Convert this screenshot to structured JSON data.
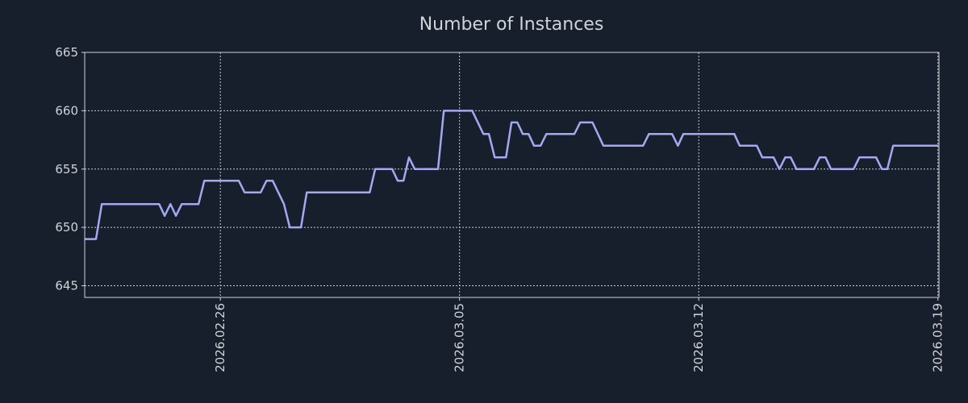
{
  "chart_data": {
    "type": "line",
    "title": "Number of Instances",
    "xlabel": "",
    "ylabel": "",
    "x_unit": "days since 2026.02.26",
    "xlim": [
      -3.97,
      21.03
    ],
    "ylim": [
      644,
      665
    ],
    "grid": true,
    "x_ticks": [
      {
        "value": 0,
        "label": "2026.02.26"
      },
      {
        "value": 7,
        "label": "2026.03.05"
      },
      {
        "value": 14,
        "label": "2026.03.12"
      },
      {
        "value": 21,
        "label": "2026.03.19"
      }
    ],
    "y_ticks": [
      {
        "value": 645,
        "label": "645"
      },
      {
        "value": 650,
        "label": "650"
      },
      {
        "value": 655,
        "label": "655"
      },
      {
        "value": 660,
        "label": "660"
      },
      {
        "value": 665,
        "label": "665"
      }
    ],
    "series": [
      {
        "name": "Number of Instances",
        "color": "#a3a8f0",
        "x": [
          -3.97,
          -3.64,
          -3.47,
          -1.79,
          -1.63,
          -1.46,
          -1.3,
          -1.13,
          -0.64,
          -0.47,
          0.54,
          0.71,
          1.18,
          1.35,
          1.53,
          1.86,
          2.03,
          2.36,
          2.53,
          4.37,
          4.53,
          5.03,
          5.19,
          5.36,
          5.52,
          5.69,
          6.37,
          6.54,
          7.37,
          7.7,
          7.86,
          8.03,
          8.36,
          8.52,
          8.69,
          8.85,
          9.02,
          9.18,
          9.37,
          9.54,
          10.36,
          10.53,
          10.89,
          11.21,
          12.37,
          12.54,
          13.22,
          13.39,
          13.55,
          15.04,
          15.2,
          15.7,
          15.86,
          16.19,
          16.36,
          16.53,
          16.69,
          16.86,
          17.37,
          17.54,
          17.71,
          17.87,
          18.53,
          18.7,
          19.19,
          19.36,
          19.52,
          19.69,
          21.01
        ],
        "y": [
          649,
          649,
          652,
          652,
          651,
          652,
          651,
          652,
          652,
          654,
          654,
          653,
          653,
          654,
          654,
          652,
          650,
          650,
          653,
          653,
          655,
          655,
          654,
          654,
          656,
          655,
          655,
          660,
          660,
          658,
          658,
          656,
          656,
          659,
          659,
          658,
          658,
          657,
          657,
          658,
          658,
          659,
          659,
          657,
          657,
          658,
          658,
          657,
          658,
          658,
          657,
          657,
          656,
          656,
          655,
          656,
          656,
          655,
          655,
          656,
          656,
          655,
          655,
          656,
          656,
          655,
          655,
          657,
          657
        ]
      }
    ]
  }
}
